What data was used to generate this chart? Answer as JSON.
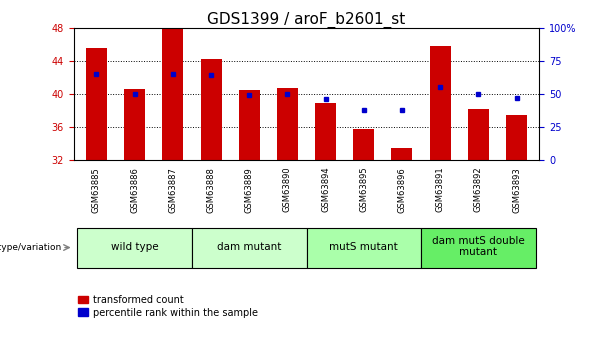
{
  "title": "GDS1399 / aroF_b2601_st",
  "samples": [
    "GSM63885",
    "GSM63886",
    "GSM63887",
    "GSM63888",
    "GSM63889",
    "GSM63890",
    "GSM63894",
    "GSM63895",
    "GSM63896",
    "GSM63891",
    "GSM63892",
    "GSM63893"
  ],
  "red_values": [
    45.5,
    40.6,
    48.0,
    44.2,
    40.5,
    40.7,
    38.9,
    35.8,
    33.5,
    45.8,
    38.2,
    37.5
  ],
  "blue_percentile": [
    65,
    50,
    65,
    64,
    49,
    50,
    46,
    38,
    38,
    55,
    50,
    47
  ],
  "ylim_left": [
    32,
    48
  ],
  "ylim_right": [
    0,
    100
  ],
  "yticks_left": [
    32,
    36,
    40,
    44,
    48
  ],
  "yticks_right": [
    0,
    25,
    50,
    75,
    100
  ],
  "ytick_right_labels": [
    "0",
    "25",
    "50",
    "75",
    "100%"
  ],
  "groups": [
    {
      "label": "wild type",
      "start": 0,
      "end": 3,
      "color": "#ccffcc"
    },
    {
      "label": "dam mutant",
      "start": 3,
      "end": 6,
      "color": "#ccffcc"
    },
    {
      "label": "mutS mutant",
      "start": 6,
      "end": 9,
      "color": "#aaffaa"
    },
    {
      "label": "dam mutS double\nmutant",
      "start": 9,
      "end": 12,
      "color": "#66ee66"
    }
  ],
  "red_color": "#cc0000",
  "blue_color": "#0000cc",
  "bar_width": 0.55,
  "sample_bg": "#d0d0d0",
  "plot_bg": "#ffffff",
  "legend_red": "transformed count",
  "legend_blue": "percentile rank within the sample",
  "genotype_label": "genotype/variation",
  "title_fontsize": 11,
  "tick_fontsize": 7,
  "group_fontsize": 7.5
}
